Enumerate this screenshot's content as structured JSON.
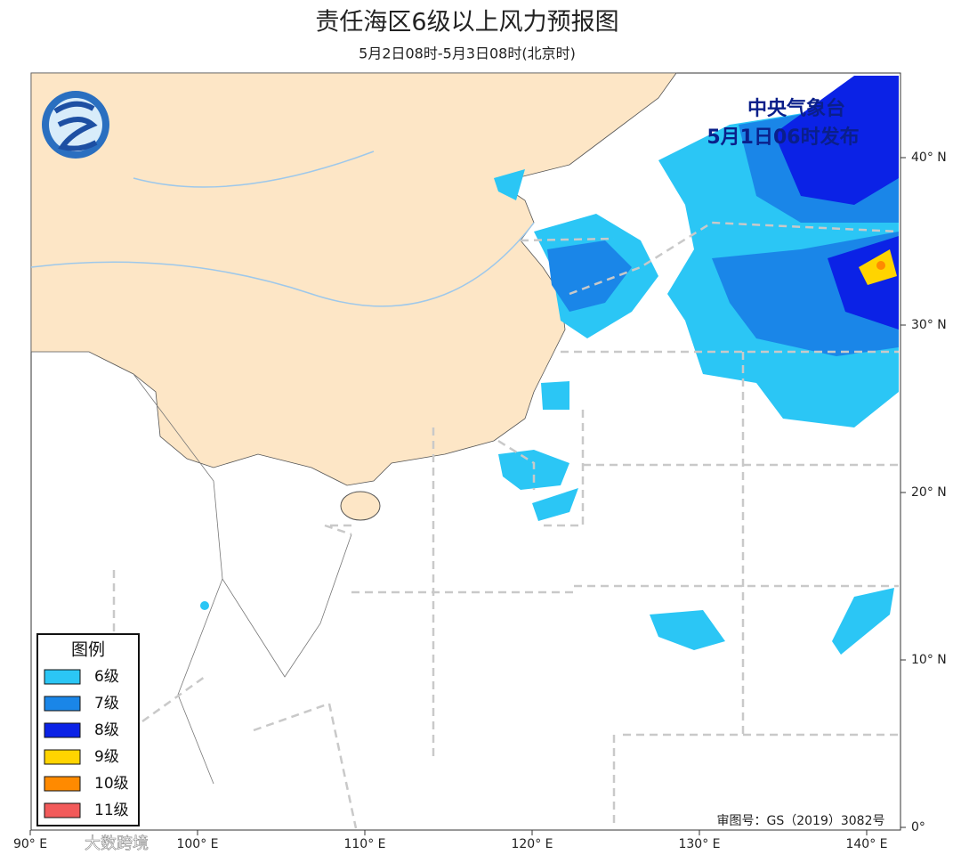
{
  "header": {
    "title": "责任海区6级以上风力预报图",
    "subtitle": "5月2日08时-5月3日08时(北京时)"
  },
  "issuer": {
    "name": "中央气象台",
    "time": "5月1日06时发布"
  },
  "lat_ticks": [
    {
      "value": 40,
      "label": "40° N"
    },
    {
      "value": 30,
      "label": "30° N"
    },
    {
      "value": 20,
      "label": "20° N"
    },
    {
      "value": 10,
      "label": "10° N"
    },
    {
      "value": 0,
      "label": "0°"
    }
  ],
  "lon_ticks": [
    {
      "value": 90,
      "label": "90° E"
    },
    {
      "value": 100,
      "label": "100° E"
    },
    {
      "value": 110,
      "label": "110° E"
    },
    {
      "value": 120,
      "label": "120° E"
    },
    {
      "value": 130,
      "label": "130° E"
    },
    {
      "value": 140,
      "label": "140° E"
    }
  ],
  "legend": {
    "title": "图例",
    "items": [
      {
        "label": "6级",
        "color": "#2bc6f5"
      },
      {
        "label": "7级",
        "color": "#1a86e8"
      },
      {
        "label": "8级",
        "color": "#0b22e6"
      },
      {
        "label": "9级",
        "color": "#ffd400"
      },
      {
        "label": "10级",
        "color": "#ff8a00"
      },
      {
        "label": "11级",
        "color": "#f25a5a"
      }
    ]
  },
  "approval": "审图号：GS（2019）3082号",
  "watermark": "大数跨境"
}
